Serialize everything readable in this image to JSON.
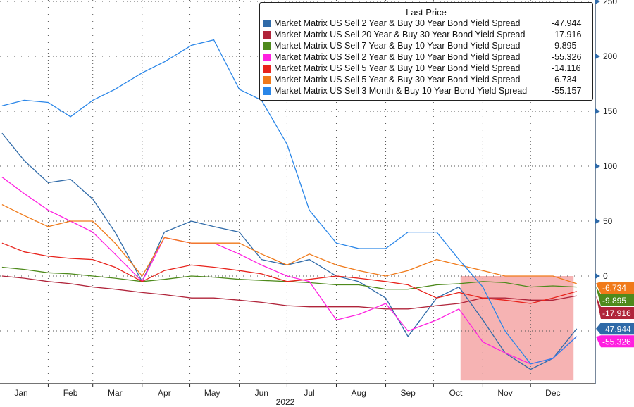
{
  "chart_data": {
    "type": "line",
    "legend_title": "Last Price",
    "legend_position": "top-right",
    "year_label": "2022",
    "x_tick_labels": [
      "Jan",
      "Feb",
      "Mar",
      "Apr",
      "May",
      "Jun",
      "Jul",
      "Aug",
      "Sep",
      "Oct",
      "Nov",
      "Dec"
    ],
    "y_tick_labels": [
      "250",
      "200",
      "150",
      "100",
      "50",
      "0"
    ],
    "ylim": [
      -100,
      250
    ],
    "grid": true,
    "y_axis_side": "right",
    "highlight_region": {
      "x": [
        "2022-10-18",
        "2022-12-28"
      ],
      "y": [
        0,
        -95
      ],
      "color": "#f4a6a6"
    },
    "x": [
      "2022-01-03",
      "2022-01-17",
      "2022-02-01",
      "2022-02-15",
      "2022-03-01",
      "2022-03-15",
      "2022-04-01",
      "2022-04-15",
      "2022-05-02",
      "2022-05-16",
      "2022-06-01",
      "2022-06-15",
      "2022-07-01",
      "2022-07-15",
      "2022-08-01",
      "2022-08-15",
      "2022-09-01",
      "2022-09-15",
      "2022-10-03",
      "2022-10-17",
      "2022-11-01",
      "2022-11-15",
      "2022-12-01",
      "2022-12-15",
      "2022-12-30"
    ],
    "series": [
      {
        "name": "Market Matrix US Sell 2 Year & Buy 30 Year Bond Yield Spread",
        "last": "-47.944",
        "color": "#2f6aa8",
        "values": [
          130,
          105,
          85,
          88,
          70,
          40,
          -5,
          40,
          50,
          45,
          40,
          15,
          10,
          15,
          0,
          -5,
          -20,
          -55,
          -20,
          -10,
          -40,
          -70,
          -85,
          -75,
          -48
        ]
      },
      {
        "name": "Market Matrix US Sell 20 Year & Buy 30 Year Bond Yield Spread",
        "last": "-17.916",
        "color": "#b0243a",
        "values": [
          0,
          -2,
          -5,
          -7,
          -10,
          -12,
          -15,
          -17,
          -20,
          -20,
          -22,
          -24,
          -27,
          -28,
          -28,
          -28,
          -30,
          -30,
          -27,
          -25,
          -20,
          -20,
          -22,
          -22,
          -18
        ]
      },
      {
        "name": "Market Matrix US Sell 7 Year & Buy 10 Year Bond Yield Spread",
        "last": "-9.895",
        "color": "#4e8a1c",
        "values": [
          8,
          6,
          3,
          2,
          0,
          -2,
          -5,
          -3,
          0,
          -1,
          -3,
          -4,
          -5,
          -6,
          -8,
          -8,
          -12,
          -12,
          -8,
          -7,
          -5,
          -6,
          -10,
          -9,
          -10
        ]
      },
      {
        "name": "Market Matrix US Sell 2 Year & Buy 10 Year Bond Yield Spread",
        "last": "-55.326",
        "color": "#ff1fe0",
        "values": [
          90,
          75,
          60,
          50,
          40,
          20,
          -5,
          35,
          30,
          30,
          20,
          10,
          0,
          -5,
          -40,
          -35,
          -25,
          -50,
          -40,
          -30,
          -60,
          -70,
          -80,
          -75,
          -55
        ]
      },
      {
        "name": "Market Matrix US Sell 5 Year & Buy 10 Year Bond Yield Spread",
        "last": "-14.116",
        "color": "#e8231c",
        "values": [
          30,
          22,
          18,
          16,
          15,
          8,
          -5,
          5,
          10,
          8,
          5,
          2,
          -5,
          -3,
          0,
          -2,
          -5,
          -8,
          -20,
          -15,
          -20,
          -22,
          -25,
          -20,
          -14
        ]
      },
      {
        "name": "Market Matrix US Sell 5 Year & Buy 30 Year Bond Yield Spread",
        "last": "-6.734",
        "color": "#f07a1a",
        "values": [
          65,
          55,
          45,
          50,
          50,
          30,
          0,
          35,
          30,
          30,
          30,
          20,
          10,
          20,
          10,
          5,
          0,
          5,
          15,
          10,
          5,
          0,
          0,
          0,
          -7
        ]
      },
      {
        "name": "Market Matrix US Sell 3 Month & Buy 10 Year Bond Yield Spread",
        "last": "-55.157",
        "color": "#2a86e8",
        "values": [
          155,
          160,
          158,
          145,
          160,
          170,
          185,
          195,
          210,
          215,
          170,
          160,
          120,
          60,
          30,
          25,
          25,
          40,
          40,
          15,
          -10,
          -50,
          -80,
          -75,
          -55
        ]
      }
    ]
  }
}
